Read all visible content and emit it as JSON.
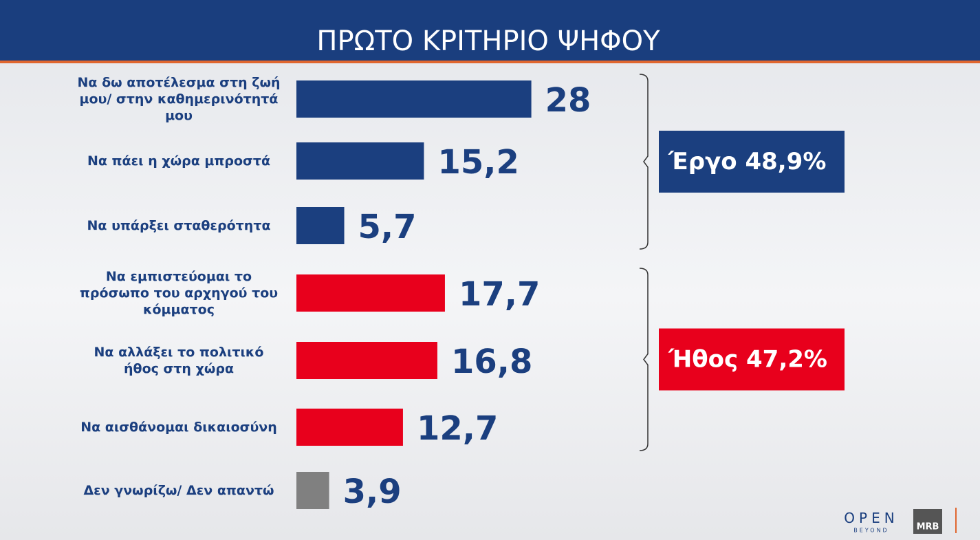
{
  "chart_data": {
    "type": "bar",
    "orientation": "horizontal",
    "title": "ΠΡΩΤΟ ΚΡΙΤΗΡΙΟ ΨΗΦΟΥ",
    "categories": [
      "Να δω αποτέλεσμα στη ζωή μου/ στην καθημερινότητά μου",
      "Να πάει η χώρα μπροστά",
      "Να υπάρξει σταθερότητα",
      "Να εμπιστεύομαι το πρόσωπο του αρχηγού του κόμματος",
      "Να αλλάξει το πολιτικό ήθος στη χώρα",
      "Να αισθάνομαι δικαιοσύνη",
      "Δεν γνωρίζω/ Δεν απαντώ"
    ],
    "values": [
      28,
      15.2,
      5.7,
      17.7,
      16.8,
      12.7,
      3.9
    ],
    "value_labels": [
      "28",
      "15,2",
      "5,7",
      "17,7",
      "16,8",
      "12,7",
      "3,9"
    ],
    "colors": [
      "#1b3f7f",
      "#1b3f7f",
      "#1b3f7f",
      "#e8001c",
      "#e8001c",
      "#e8001c",
      "#808080"
    ],
    "groups": [
      {
        "label": "Έργο 48,9%",
        "color": "#1b3f7f"
      },
      {
        "label": "Ήθος 47,2%",
        "color": "#e8001c"
      }
    ],
    "logos": {
      "channel": "OPEN",
      "channel_sub": "BEYOND",
      "pollster": "MRB"
    }
  }
}
